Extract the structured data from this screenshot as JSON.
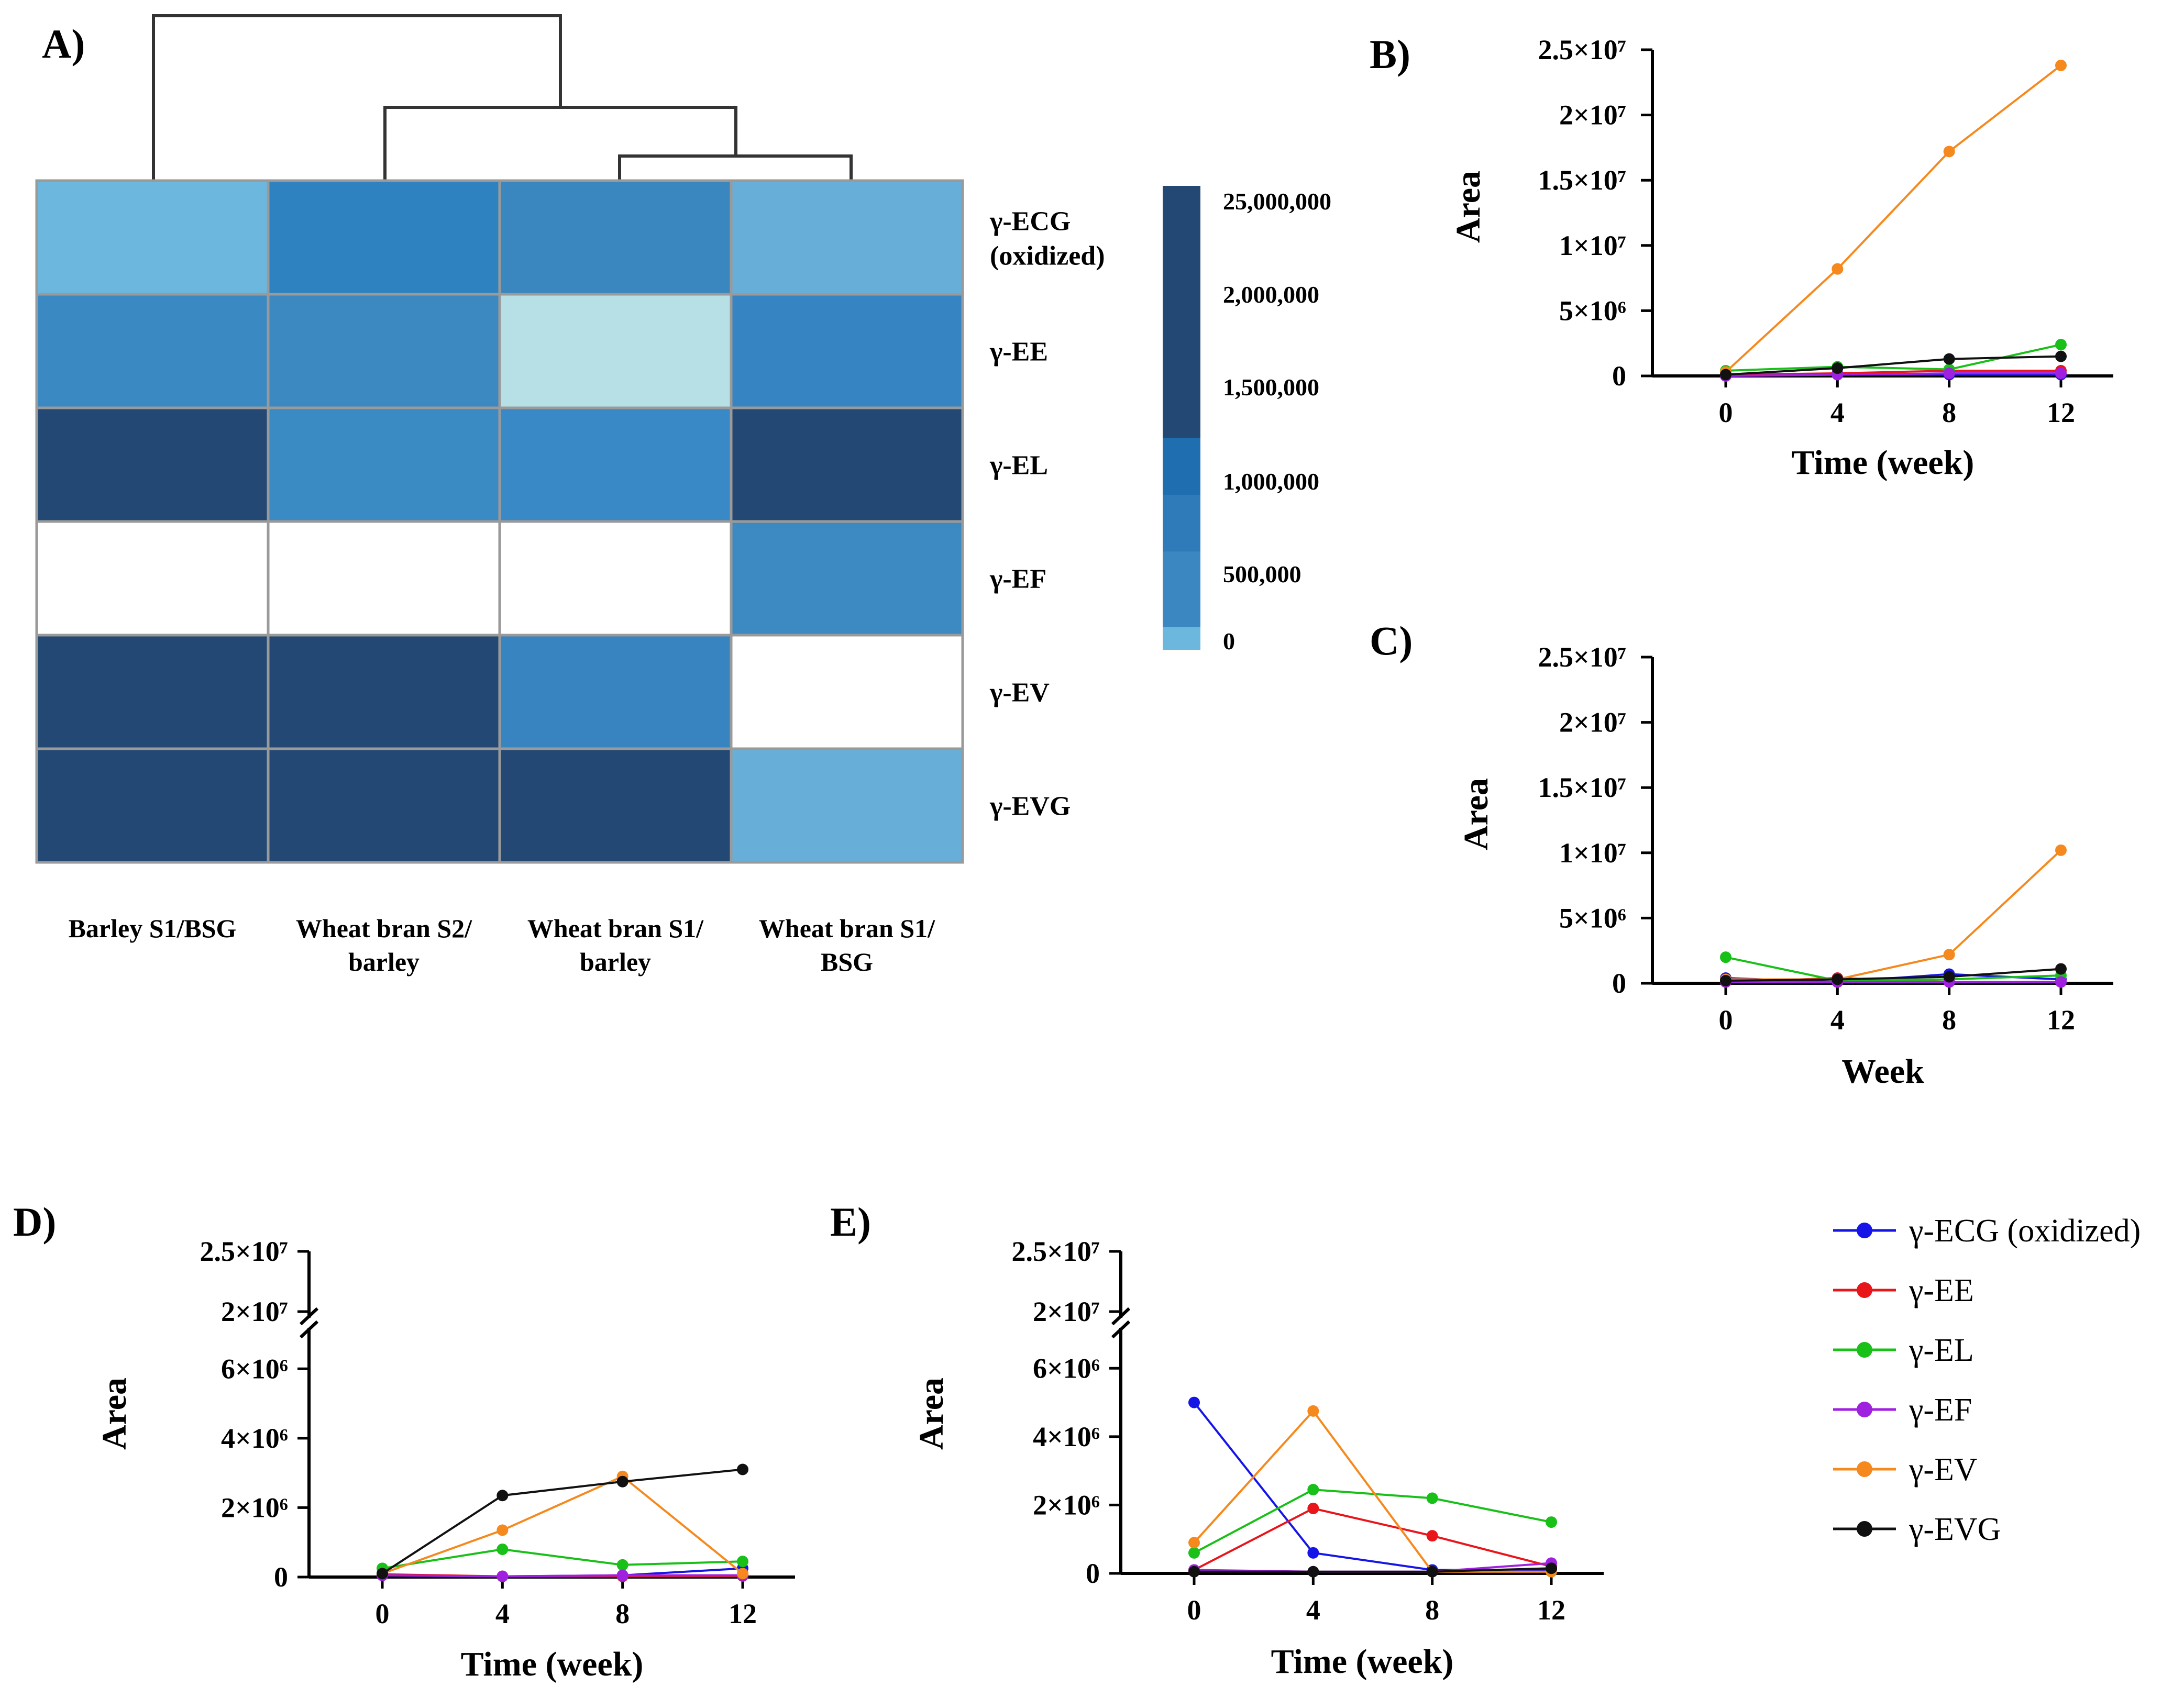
{
  "panels": {
    "A": "A)",
    "B": "B)",
    "C": "C)",
    "D": "D)",
    "E": "E)"
  },
  "heatmap": {
    "rows": [
      "γ-ECG\n(oxidized)",
      "γ-EE",
      "γ-EL",
      "γ-EF",
      "γ-EV",
      "γ-EVG"
    ],
    "columns": [
      "Barley S1/BSG",
      "Wheat bran S2/\nbarley",
      "Wheat bran S1/\nbarley",
      "Wheat bran S1/\nBSG"
    ],
    "cell_colors": [
      [
        "#6cb7de",
        "#2f82c0",
        "#3a87c0",
        "#67afd8"
      ],
      [
        "#3a89c3",
        "#3c88c0",
        "#b7e0e6",
        "#3684c1"
      ],
      [
        "#234873",
        "#3a8ac4",
        "#3889c5",
        "#234873"
      ],
      [
        "#ffffff",
        "#ffffff",
        "#ffffff",
        "#3d89c1"
      ],
      [
        "#234873",
        "#234873",
        "#3884c1",
        "#ffffff"
      ],
      [
        "#234873",
        "#234873",
        "#234873",
        "#67afd8"
      ]
    ],
    "colorbar": {
      "labels": [
        "25,000,000",
        "2,000,000",
        "1,500,000",
        "1,000,000",
        "500,000",
        "0"
      ],
      "colors": [
        "#234873",
        "#234873",
        "#234873",
        "#234873",
        "#1f6fb0",
        "#2f7ab8",
        "#3a87c2",
        "#6cb7de"
      ]
    }
  },
  "legend": [
    {
      "label": "γ-ECG (oxidized)",
      "color": "#1515e8"
    },
    {
      "label": "γ-EE",
      "color": "#e8151a"
    },
    {
      "label": "γ-EL",
      "color": "#18c018"
    },
    {
      "label": "γ-EF",
      "color": "#a020e0"
    },
    {
      "label": "γ-EV",
      "color": "#f5891e"
    },
    {
      "label": "γ-EVG",
      "color": "#111111"
    }
  ],
  "chart_data": [
    {
      "panel": "B",
      "type": "line",
      "xlabel": "Time (week)",
      "ylabel": "Area",
      "x": [
        0,
        4,
        8,
        12
      ],
      "xticks": [
        "0",
        "4",
        "8",
        "12"
      ],
      "ylim": [
        0,
        25000000
      ],
      "yticks": [
        {
          "value": 0,
          "label": "0"
        },
        {
          "value": 5000000,
          "label": "5×10⁶"
        },
        {
          "value": 10000000,
          "label": "1×10⁷"
        },
        {
          "value": 15000000,
          "label": "1.5×10⁷"
        },
        {
          "value": 20000000,
          "label": "2×10⁷"
        },
        {
          "value": 25000000,
          "label": "2.5×10⁷"
        }
      ],
      "series": [
        {
          "name": "γ-ECG (oxidized)",
          "values": [
            0,
            100000,
            100000,
            100000
          ]
        },
        {
          "name": "γ-EE",
          "values": [
            100000,
            200000,
            400000,
            400000
          ]
        },
        {
          "name": "γ-EL",
          "values": [
            400000,
            700000,
            500000,
            2400000
          ]
        },
        {
          "name": "γ-EF",
          "values": [
            0,
            100000,
            200000,
            200000
          ]
        },
        {
          "name": "γ-EV",
          "values": [
            300000,
            8200000,
            17200000,
            23800000
          ]
        },
        {
          "name": "γ-EVG",
          "values": [
            100000,
            600000,
            1300000,
            1500000
          ]
        }
      ]
    },
    {
      "panel": "C",
      "type": "line",
      "xlabel": "Week",
      "ylabel": "Area",
      "x": [
        0,
        4,
        8,
        12
      ],
      "xticks": [
        "0",
        "4",
        "8",
        "12"
      ],
      "ylim": [
        0,
        25000000
      ],
      "yticks": [
        {
          "value": 0,
          "label": "0"
        },
        {
          "value": 5000000,
          "label": "5×10⁶"
        },
        {
          "value": 10000000,
          "label": "1×10⁷"
        },
        {
          "value": 15000000,
          "label": "1.5×10⁷"
        },
        {
          "value": 20000000,
          "label": "2×10⁷"
        },
        {
          "value": 25000000,
          "label": "2.5×10⁷"
        }
      ],
      "series": [
        {
          "name": "γ-ECG (oxidized)",
          "values": [
            400000,
            100000,
            700000,
            300000
          ]
        },
        {
          "name": "γ-EE",
          "values": [
            100000,
            400000,
            100000,
            100000
          ]
        },
        {
          "name": "γ-EL",
          "values": [
            2000000,
            200000,
            300000,
            600000
          ]
        },
        {
          "name": "γ-EF",
          "values": [
            100000,
            100000,
            100000,
            100000
          ]
        },
        {
          "name": "γ-EV",
          "values": [
            300000,
            300000,
            2200000,
            10200000
          ]
        },
        {
          "name": "γ-EVG",
          "values": [
            200000,
            300000,
            500000,
            1100000
          ]
        }
      ]
    },
    {
      "panel": "D",
      "type": "line",
      "xlabel": "Time (week)",
      "ylabel": "Area",
      "x": [
        0,
        4,
        8,
        12
      ],
      "xticks": [
        "0",
        "4",
        "8",
        "12"
      ],
      "y_break": [
        7000000,
        20000000
      ],
      "ylim": [
        0,
        25000000
      ],
      "yticks": [
        {
          "value": 0,
          "label": "0"
        },
        {
          "value": 2000000,
          "label": "2×10⁶"
        },
        {
          "value": 4000000,
          "label": "4×10⁶"
        },
        {
          "value": 6000000,
          "label": "6×10⁶"
        },
        {
          "value": 20000000,
          "label": "2×10⁷"
        },
        {
          "value": 25000000,
          "label": "2.5×10⁷"
        }
      ],
      "series": [
        {
          "name": "γ-ECG (oxidized)",
          "values": [
            50000,
            20000,
            50000,
            250000
          ]
        },
        {
          "name": "γ-EE",
          "values": [
            80000,
            20000,
            20000,
            30000
          ]
        },
        {
          "name": "γ-EL",
          "values": [
            250000,
            800000,
            350000,
            450000
          ]
        },
        {
          "name": "γ-EF",
          "values": [
            50000,
            20000,
            50000,
            50000
          ]
        },
        {
          "name": "γ-EV",
          "values": [
            100000,
            1350000,
            2900000,
            100000
          ]
        },
        {
          "name": "γ-EVG",
          "values": [
            100000,
            2350000,
            2750000,
            3100000
          ]
        }
      ]
    },
    {
      "panel": "E",
      "type": "line",
      "xlabel": "Time (week)",
      "ylabel": "Area",
      "x": [
        0,
        4,
        8,
        12
      ],
      "xticks": [
        "0",
        "4",
        "8",
        "12"
      ],
      "y_break": [
        7000000,
        20000000
      ],
      "ylim": [
        0,
        25000000
      ],
      "yticks": [
        {
          "value": 0,
          "label": "0"
        },
        {
          "value": 2000000,
          "label": "2×10⁶"
        },
        {
          "value": 4000000,
          "label": "4×10⁶"
        },
        {
          "value": 6000000,
          "label": "6×10⁶"
        },
        {
          "value": 20000000,
          "label": "2×10⁷"
        },
        {
          "value": 25000000,
          "label": "2.5×10⁷"
        }
      ],
      "series": [
        {
          "name": "γ-ECG (oxidized)",
          "values": [
            5000000,
            600000,
            100000,
            100000
          ]
        },
        {
          "name": "γ-EE",
          "values": [
            100000,
            1900000,
            1100000,
            200000
          ]
        },
        {
          "name": "γ-EL",
          "values": [
            600000,
            2450000,
            2200000,
            1500000
          ]
        },
        {
          "name": "γ-EF",
          "values": [
            100000,
            50000,
            50000,
            300000
          ]
        },
        {
          "name": "γ-EV",
          "values": [
            900000,
            4750000,
            50000,
            50000
          ]
        },
        {
          "name": "γ-EVG",
          "values": [
            50000,
            50000,
            50000,
            150000
          ]
        }
      ]
    }
  ]
}
